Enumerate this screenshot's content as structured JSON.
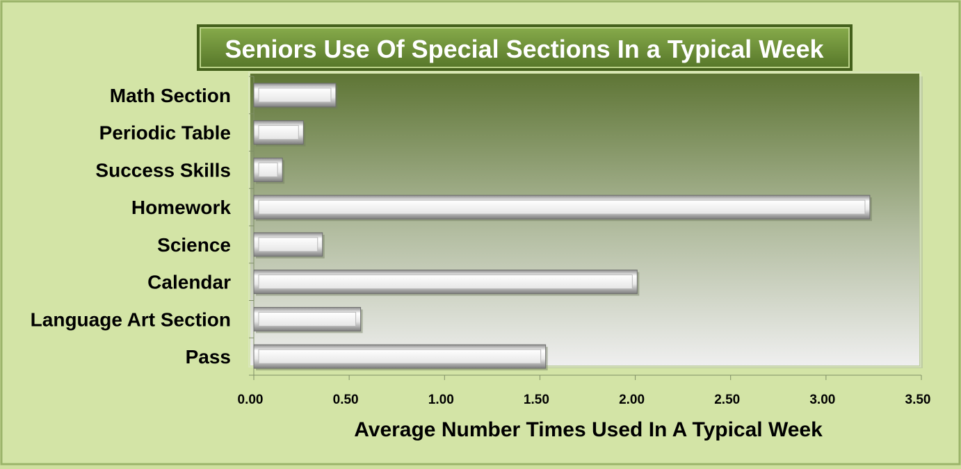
{
  "chart_data": {
    "type": "bar",
    "orientation": "horizontal",
    "title": "Seniors Use Of Special Sections In a Typical Week",
    "xlabel": "Average Number Times Used In A Typical Week",
    "ylabel": "",
    "categories": [
      "Math Section",
      "Periodic Table",
      "Success Skills",
      "Homework",
      "Science",
      "Calendar",
      "Language Art Section",
      "Pass"
    ],
    "values": [
      0.43,
      0.26,
      0.15,
      3.23,
      0.36,
      2.01,
      0.56,
      1.53
    ],
    "xlim": [
      0,
      3.5
    ],
    "xticks": [
      "0.00",
      "0.50",
      "1.00",
      "1.50",
      "2.00",
      "2.50",
      "3.00",
      "3.50"
    ],
    "grid": false,
    "legend": "none",
    "colors": {
      "background": "#d3e4a6",
      "plot_top": "#5e7535",
      "plot_bottom": "#eeeeee",
      "title_box": "#6a8f35",
      "title_text": "#ffffff",
      "bar": "#f2f2f2"
    }
  }
}
